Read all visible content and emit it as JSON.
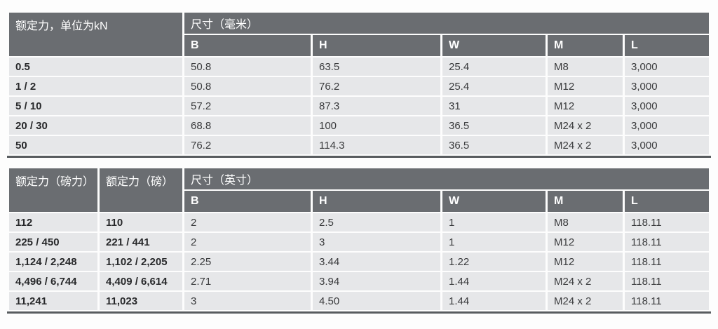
{
  "metric": {
    "force_header": "额定力，单位为kN",
    "dim_header": "尺寸（毫米）",
    "columns": [
      "B",
      "H",
      "W",
      "M",
      "L"
    ],
    "rows": [
      {
        "force": "0.5",
        "B": "50.8",
        "H": "63.5",
        "W": "25.4",
        "M": "M8",
        "L": "3,000"
      },
      {
        "force": "1 / 2",
        "B": "50.8",
        "H": "76.2",
        "W": "25.4",
        "M": "M12",
        "L": "3,000"
      },
      {
        "force": "5 / 10",
        "B": "57.2",
        "H": "87.3",
        "W": "31",
        "M": "M12",
        "L": "3,000"
      },
      {
        "force": "20 / 30",
        "B": "68.8",
        "H": "100",
        "W": "36.5",
        "M": "M24 x 2",
        "L": "3,000"
      },
      {
        "force": "50",
        "B": "76.2",
        "H": "114.3",
        "W": "36.5",
        "M": "M24 x 2",
        "L": "3,000"
      }
    ]
  },
  "imperial": {
    "force_header_lbf": "额定力（磅力）",
    "force_header_lb": "额定力（磅）",
    "dim_header": "尺寸（英寸）",
    "columns": [
      "B",
      "H",
      "W",
      "M",
      "L"
    ],
    "rows": [
      {
        "force_lbf": "112",
        "force_lb": "110",
        "B": "2",
        "H": "2.5",
        "W": "1",
        "M": "M8",
        "L": "118.11"
      },
      {
        "force_lbf": "225 / 450",
        "force_lb": "221 / 441",
        "B": "2",
        "H": "3",
        "W": "1",
        "M": "M12",
        "L": "118.11"
      },
      {
        "force_lbf": "1,124 / 2,248",
        "force_lb": "1,102 / 2,205",
        "B": "2.25",
        "H": "3.44",
        "W": "1.22",
        "M": "M12",
        "L": "118.11"
      },
      {
        "force_lbf": "4,496 / 6,744",
        "force_lb": "4,409 / 6,614",
        "B": "2.71",
        "H": "3.94",
        "W": "1.44",
        "M": "M24 x 2",
        "L": "118.11"
      },
      {
        "force_lbf": "11,241",
        "force_lb": "11,023",
        "B": "3",
        "H": "4.50",
        "W": "1.44",
        "M": "M24 x 2",
        "L": "118.11"
      }
    ]
  },
  "colors": {
    "header_bg": "#6a6d71",
    "row_bg": "#e6e7e9",
    "separator": "#ffffff",
    "thick_border": "#585c5f",
    "header_text": "#ffffff",
    "body_text": "#3a3b3d"
  }
}
